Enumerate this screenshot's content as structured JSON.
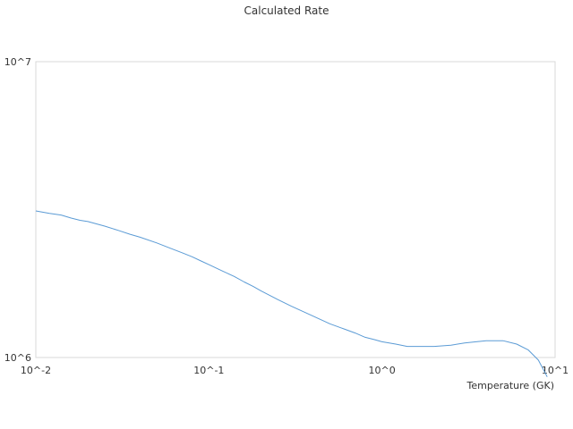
{
  "chart_data": {
    "type": "line",
    "title": "Calculated Rate",
    "xlabel": "Temperature (GK)",
    "ylabel": "",
    "x_scale": "log",
    "y_scale": "log",
    "xlim": [
      0.01,
      10
    ],
    "ylim": [
      1000000,
      10000000
    ],
    "x_ticks": [
      {
        "value": 0.01,
        "label": "10^-2"
      },
      {
        "value": 0.1,
        "label": "10^-1"
      },
      {
        "value": 1,
        "label": "10^0"
      },
      {
        "value": 10,
        "label": "10^1"
      }
    ],
    "y_ticks": [
      {
        "value": 1000000,
        "label": "10^6"
      },
      {
        "value": 10000000,
        "label": "10^7"
      }
    ],
    "grid": false,
    "legend": "none",
    "line_color": "#5b9bd5",
    "series": [
      {
        "x": [
          0.01,
          0.012,
          0.014,
          0.016,
          0.018,
          0.02,
          0.025,
          0.03,
          0.035,
          0.04,
          0.05,
          0.06,
          0.07,
          0.08,
          0.09,
          0.1,
          0.12,
          0.14,
          0.16,
          0.18,
          0.2,
          0.25,
          0.3,
          0.35,
          0.4,
          0.5,
          0.6,
          0.7,
          0.8,
          0.9,
          1.0,
          1.2,
          1.4,
          1.6,
          2.0,
          2.5,
          3.0,
          3.5,
          4.0,
          4.5,
          5.0,
          6.0,
          7.0,
          8.0,
          9.0
        ],
        "values": [
          3130000,
          3070000,
          3030000,
          2960000,
          2910000,
          2880000,
          2780000,
          2690000,
          2610000,
          2550000,
          2440000,
          2340000,
          2260000,
          2190000,
          2120000,
          2060000,
          1960000,
          1880000,
          1800000,
          1740000,
          1680000,
          1570000,
          1490000,
          1430000,
          1380000,
          1300000,
          1250000,
          1210000,
          1170000,
          1150000,
          1130000,
          1110000,
          1090000,
          1090000,
          1090000,
          1100000,
          1120000,
          1130000,
          1140000,
          1140000,
          1140000,
          1110000,
          1060000,
          980000,
          860000
        ]
      }
    ]
  }
}
